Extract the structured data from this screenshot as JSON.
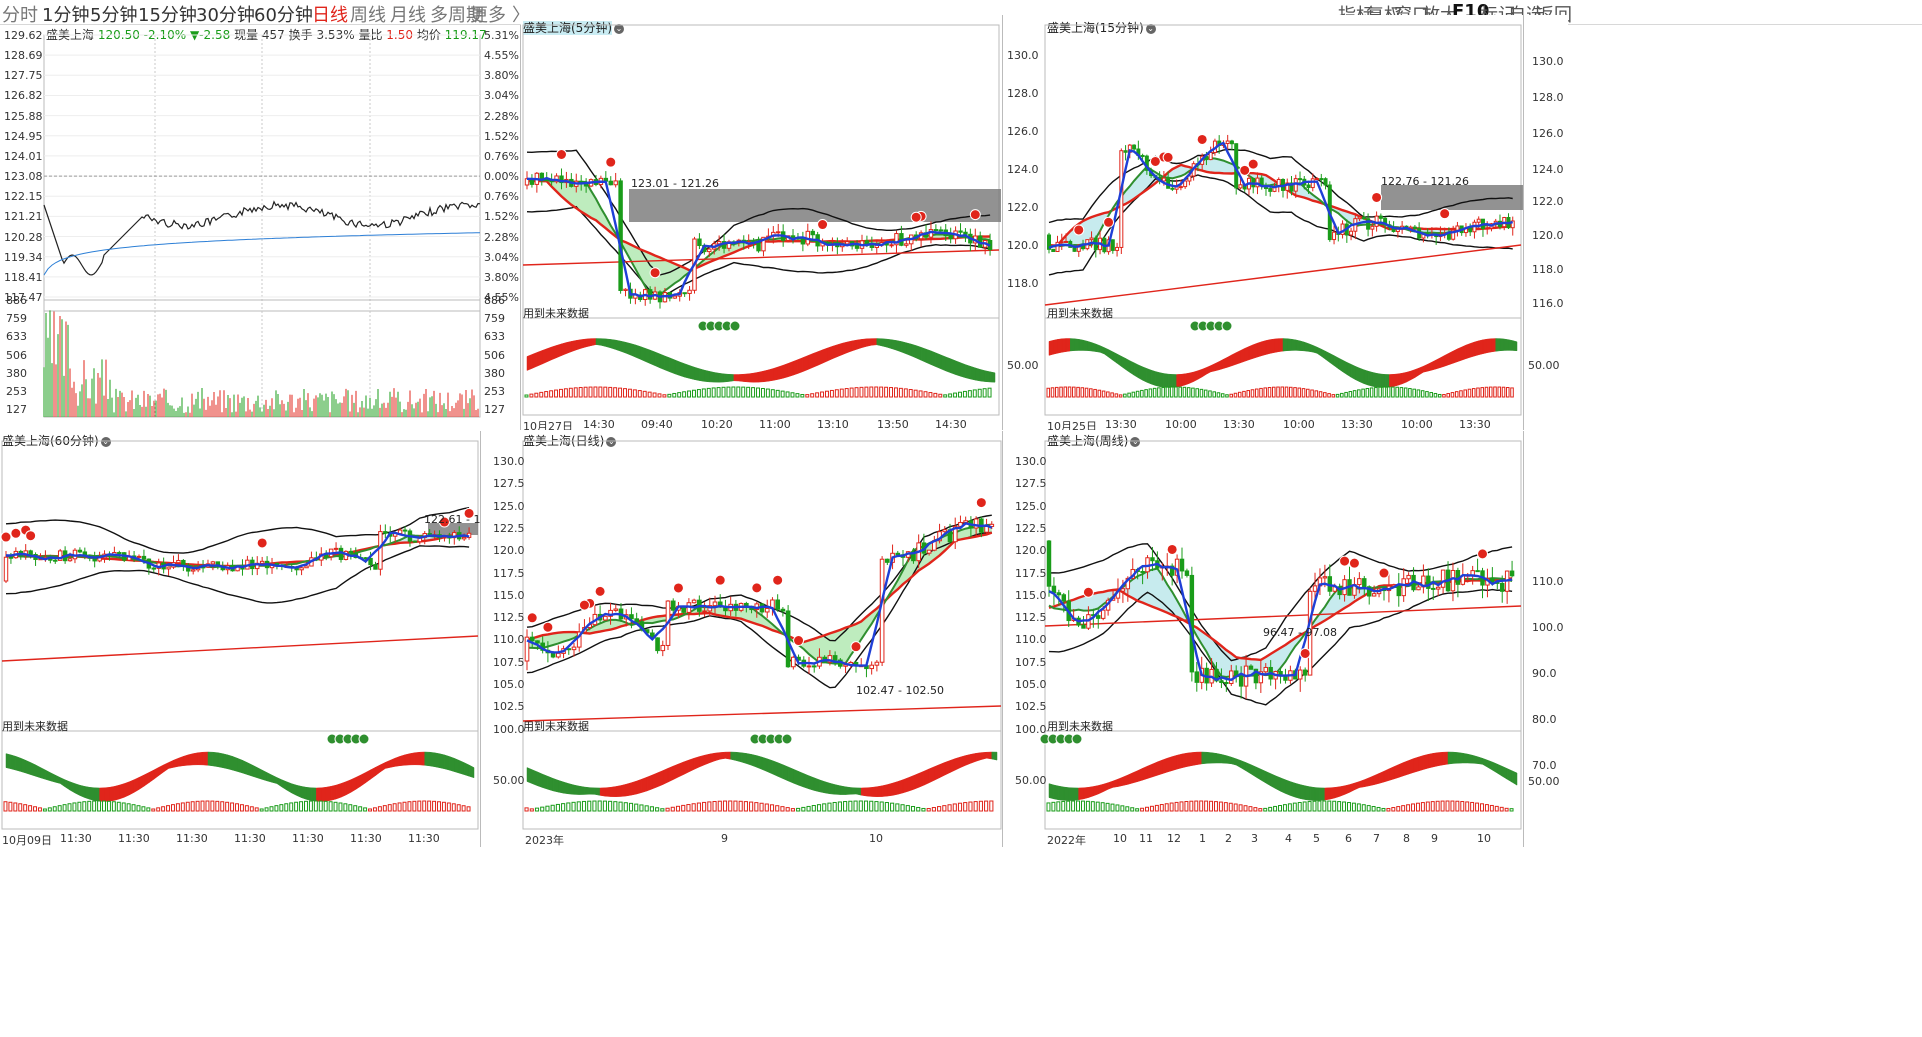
{
  "toolbar": {
    "periods": [
      {
        "label": "分时",
        "active": false,
        "gray": true
      },
      {
        "label": "1分钟",
        "active": false,
        "gray": false
      },
      {
        "label": "5分钟",
        "active": false,
        "gray": false
      },
      {
        "label": "15分钟",
        "active": false,
        "gray": false
      },
      {
        "label": "30分钟",
        "active": false,
        "gray": false
      },
      {
        "label": "60分钟",
        "active": false,
        "gray": false
      },
      {
        "label": "日线",
        "active": true,
        "gray": false
      },
      {
        "label": "周线",
        "active": false,
        "gray": true
      },
      {
        "label": "月线",
        "active": false,
        "gray": true
      },
      {
        "label": "多周期",
        "active": false,
        "gray": true
      },
      {
        "label": "更多",
        "active": false,
        "gray": true
      },
      {
        "label": "〉",
        "active": false,
        "gray": true
      }
    ],
    "tools": [
      "指标",
      "复权",
      "窗口",
      "放大",
      "F10",
      "标记",
      "自选",
      "返回"
    ]
  },
  "intraday": {
    "stock": "盛美上海",
    "price": "120.50",
    "change_pct": "-2.10%",
    "change": "▼-2.58",
    "volume_label": "现量",
    "volume": "457",
    "turnover_label": "换手",
    "turnover": "3.53%",
    "ratio_label": "量比",
    "ratio": "1.50",
    "avg_label": "均价",
    "avg": "119.17",
    "price_ticks": [
      "129.62",
      "128.69",
      "127.75",
      "126.82",
      "125.88",
      "124.95",
      "124.01",
      "123.08",
      "122.15",
      "121.21",
      "120.28",
      "119.34",
      "118.41",
      "117.47"
    ],
    "pct_ticks": [
      "5.31%",
      "4.55%",
      "3.80%",
      "3.04%",
      "2.28%",
      "1.52%",
      "0.76%",
      "0.00%",
      "0.76%",
      "1.52%",
      "2.28%",
      "3.04%",
      "3.80%",
      "4.55%"
    ],
    "vol_ticks": [
      "886",
      "759",
      "633",
      "506",
      "380",
      "253",
      "127"
    ]
  },
  "panels": {
    "p5": {
      "title": "盛美上海(5分钟)",
      "note": "用到未来数据",
      "range": "123.01 - 121.26",
      "x_ticks": [
        "10月27日",
        "14:30",
        "09:40",
        "10:20",
        "11:00",
        "13:10",
        "13:50",
        "14:30"
      ]
    },
    "p15": {
      "title": "盛美上海(15分钟)",
      "note": "用到未来数据",
      "range": "122.76 - 121.26",
      "y_ticks": [
        "130.0",
        "128.0",
        "126.0",
        "124.0",
        "122.0",
        "120.0",
        "118.0"
      ],
      "right_ticks": [
        "122.0",
        "120.0",
        "118.0",
        "116.0"
      ],
      "right_top": [
        "130.0",
        "128.0",
        "126.0",
        "124.0"
      ],
      "osc_tick": "50.00",
      "x_ticks": [
        "10月25日",
        "13:30",
        "10:00",
        "13:30",
        "10:00",
        "13:30",
        "10:00",
        "13:30"
      ]
    },
    "p60": {
      "title": "盛美上海(60分钟)",
      "note": "用到未来数据",
      "range": "122.61 - 12",
      "x_ticks": [
        "10月09日",
        "11:30",
        "11:30",
        "11:30",
        "11:30",
        "11:30",
        "11:30",
        "11:30"
      ]
    },
    "pd": {
      "title": "盛美上海(日线)",
      "note": "用到未来数据",
      "range": "102.47 - 102.50",
      "y_ticks": [
        "130.0",
        "127.5",
        "125.0",
        "122.5",
        "120.0",
        "117.5",
        "115.0",
        "112.5",
        "110.0",
        "107.5",
        "105.0",
        "102.5",
        "100.0"
      ],
      "osc_tick": "50.00",
      "x_ticks": [
        "2023年",
        "9",
        "10"
      ]
    },
    "pw": {
      "title": "盛美上海(周线)",
      "note": "用到未来数据",
      "range": "96.47 - 97.08",
      "y_ticks": [
        "130.0",
        "127.5",
        "125.0",
        "122.5",
        "120.0",
        "117.5",
        "115.0",
        "112.5",
        "110.0",
        "107.5",
        "105.0",
        "102.5",
        "100.0"
      ],
      "right_ticks": [
        "110.0",
        "100.0",
        "90.0",
        "80.0",
        "70.0"
      ],
      "osc_tick": "50.00",
      "x_ticks": [
        "2022年",
        "10",
        "11",
        "12",
        "1",
        "2",
        "3",
        "4",
        "5",
        "6",
        "7",
        "8",
        "9",
        "10"
      ]
    }
  }
}
